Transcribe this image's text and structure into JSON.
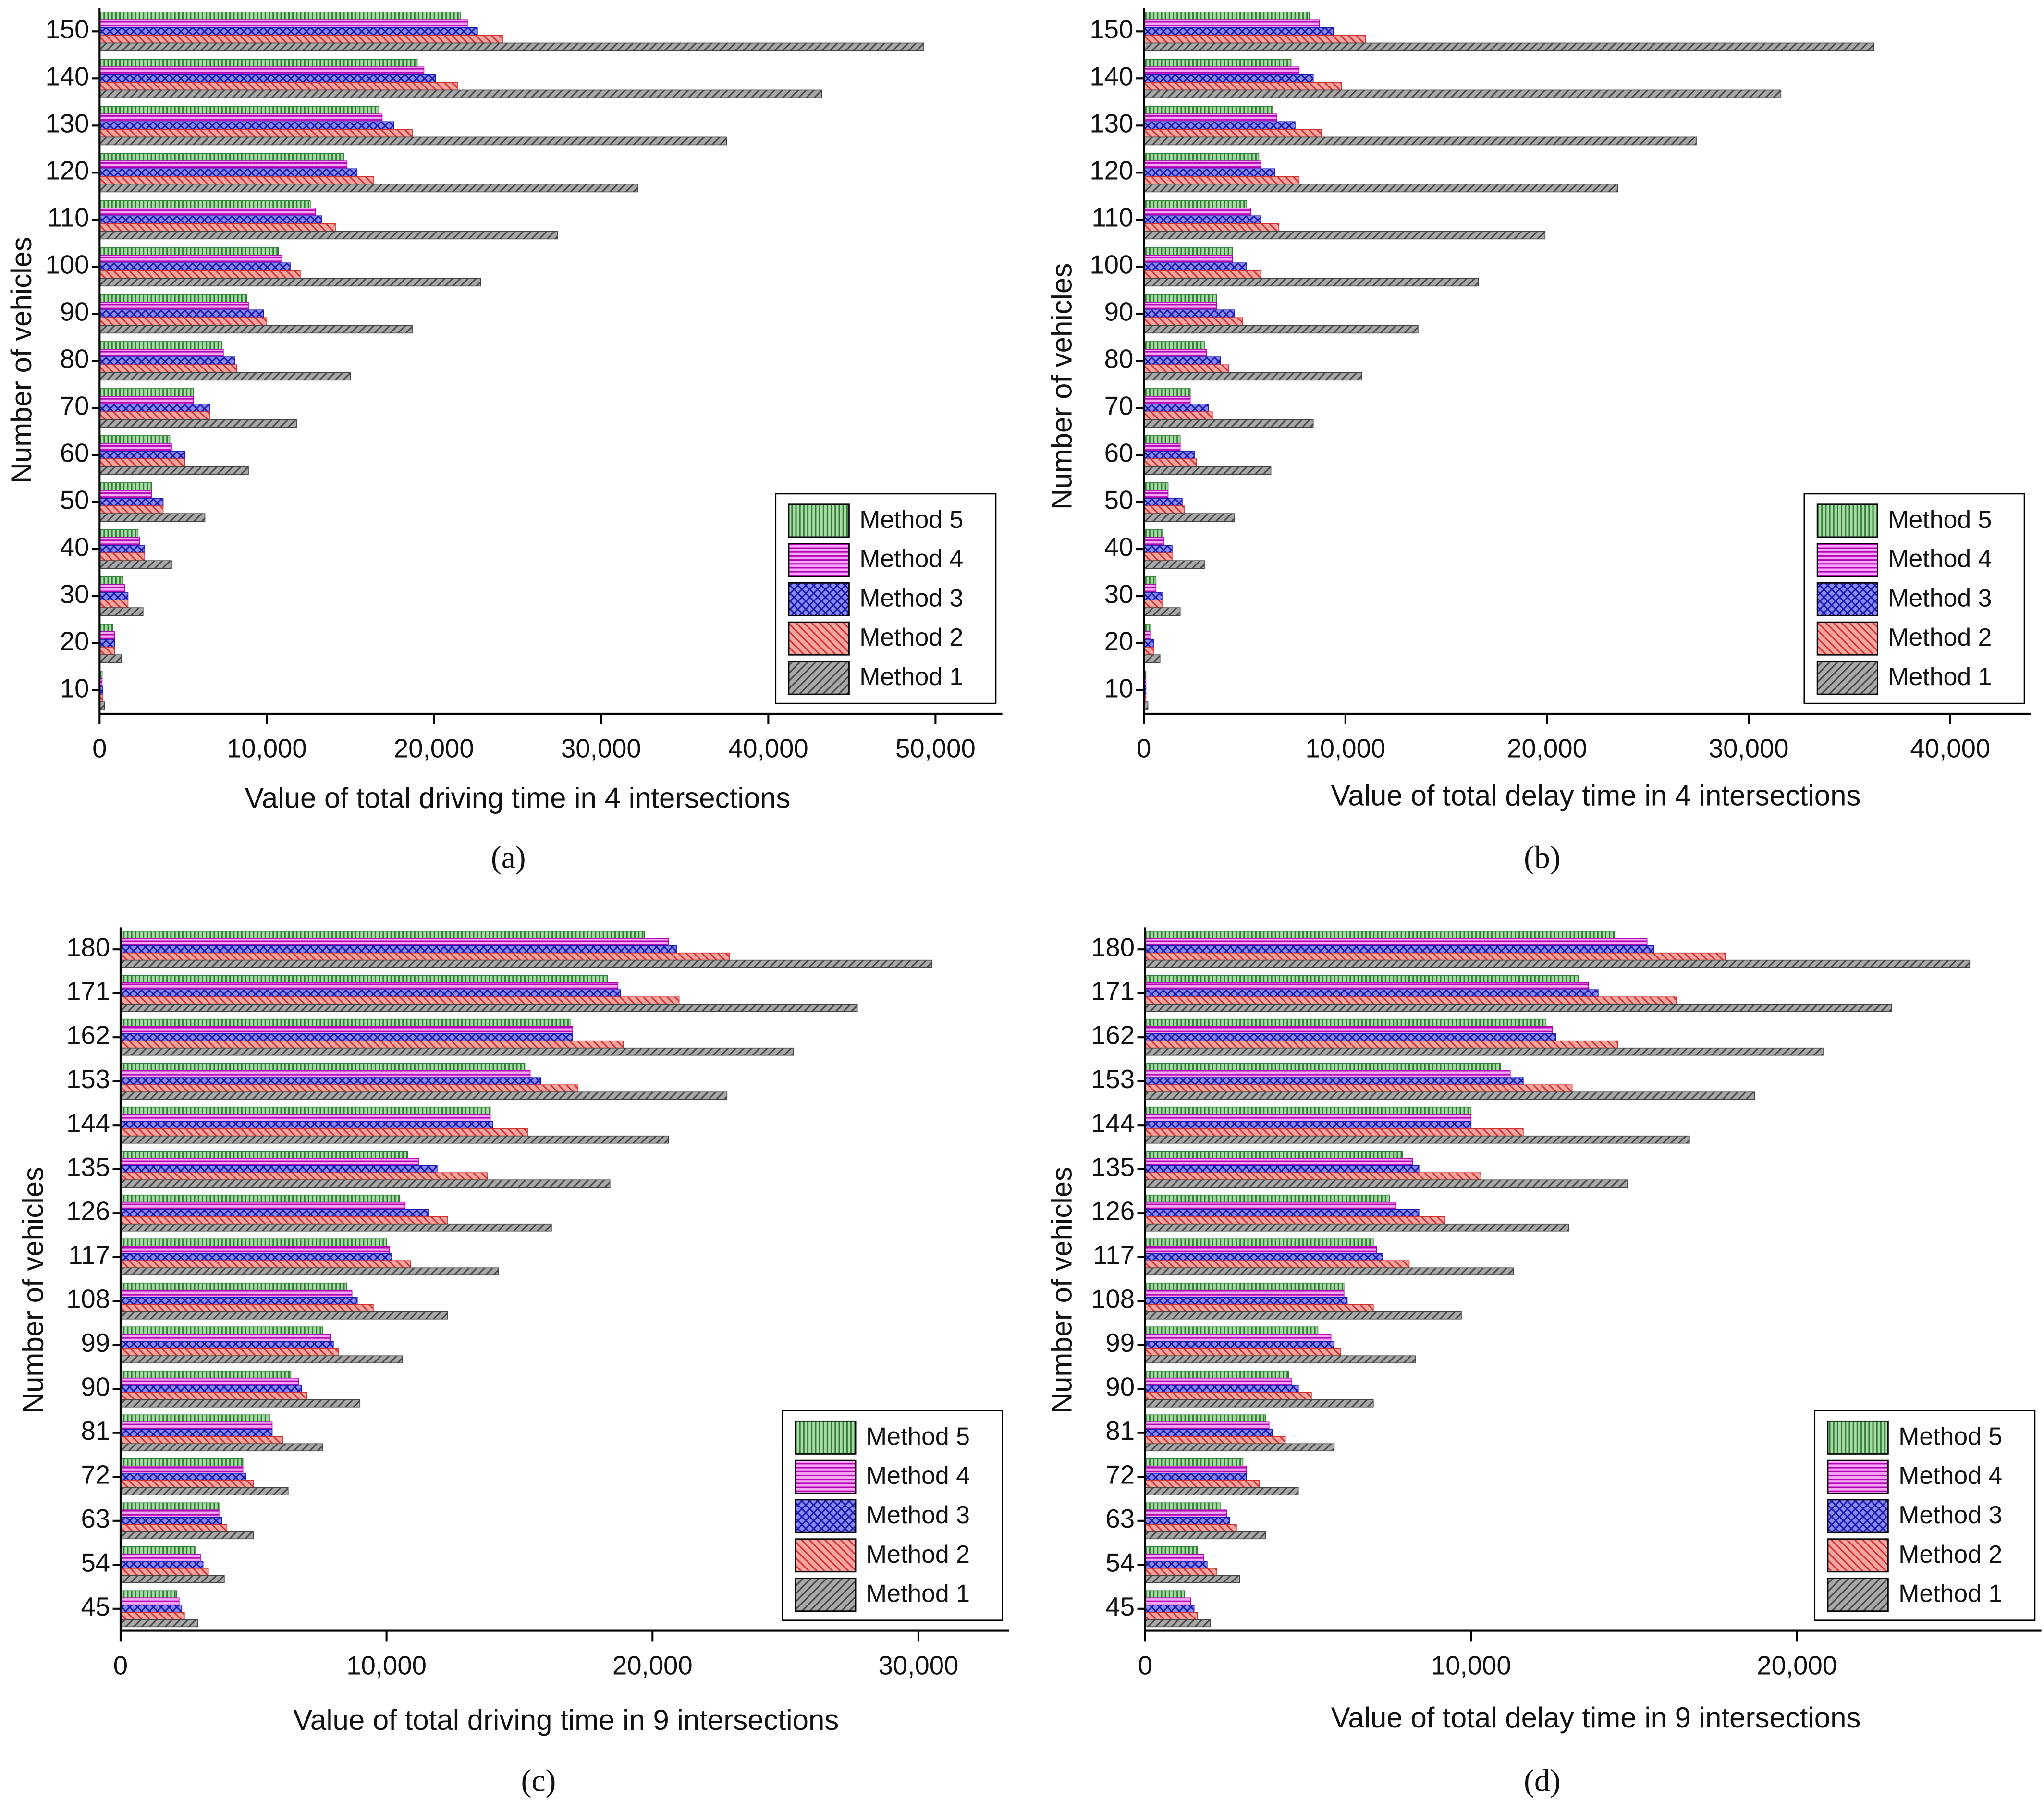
{
  "chart_data": [
    {
      "type": "bar",
      "orientation": "horizontal",
      "caption": "(a)",
      "x_label": "Value of total driving time in 4 intersections",
      "y_label": "Number of vehicles",
      "categories": [
        "10",
        "20",
        "30",
        "40",
        "50",
        "60",
        "70",
        "80",
        "90",
        "100",
        "110",
        "120",
        "130",
        "140",
        "150"
      ],
      "xlim": [
        0,
        54000
      ],
      "xticks": [
        0,
        {
          "value": 10000,
          "label": "10,000"
        },
        {
          "value": 20000,
          "label": "20,000"
        },
        {
          "value": 30000,
          "label": "30,000"
        },
        {
          "value": 40000,
          "label": "40,000"
        },
        {
          "value": 50000,
          "label": "50,000"
        }
      ],
      "legend": "lower right",
      "series": [
        {
          "name": "Method 5",
          "color": "#a9dba9",
          "hatch_color": "#2e7d32",
          "hatch": "vertical",
          "values": [
            150,
            800,
            1400,
            2300,
            3100,
            4200,
            5600,
            7300,
            8800,
            10700,
            12600,
            14600,
            16700,
            19000,
            21600
          ]
        },
        {
          "name": "Method 4",
          "color": "#f9a8f9",
          "hatch_color": "#b000b0",
          "hatch": "horizontal",
          "values": [
            150,
            900,
            1500,
            2400,
            3100,
            4300,
            5600,
            7400,
            8900,
            10900,
            12900,
            14800,
            16900,
            19400,
            22000
          ]
        },
        {
          "name": "Method 3",
          "color": "#8a8af0",
          "hatch_color": "#1a1ab0",
          "hatch": "cross",
          "values": [
            200,
            900,
            1700,
            2700,
            3800,
            5100,
            6600,
            8100,
            9800,
            11400,
            13300,
            15400,
            17600,
            20100,
            22600
          ]
        },
        {
          "name": "Method 2",
          "color": "#f5a5a0",
          "hatch_color": "#d03030",
          "hatch": "back-diagonal",
          "values": [
            200,
            900,
            1700,
            2700,
            3800,
            5100,
            6600,
            8200,
            10000,
            12000,
            14100,
            16400,
            18700,
            21400,
            24100
          ]
        },
        {
          "name": "Method 1",
          "color": "#a8a8a8",
          "hatch_color": "#444444",
          "hatch": "diagonal",
          "values": [
            300,
            1300,
            2600,
            4300,
            6300,
            8900,
            11800,
            15000,
            18700,
            22800,
            27400,
            32200,
            37500,
            43200,
            49300
          ]
        }
      ]
    },
    {
      "type": "bar",
      "orientation": "horizontal",
      "caption": "(b)",
      "x_label": "Value of total delay time in 4 intersections",
      "y_label": "Number of vehicles",
      "categories": [
        "10",
        "20",
        "30",
        "40",
        "50",
        "60",
        "70",
        "80",
        "90",
        "100",
        "110",
        "120",
        "130",
        "140",
        "150"
      ],
      "xlim": [
        0,
        44000
      ],
      "xticks": [
        0,
        {
          "value": 10000,
          "label": "10,000"
        },
        {
          "value": 20000,
          "label": "20,000"
        },
        {
          "value": 30000,
          "label": "30,000"
        },
        {
          "value": 40000,
          "label": "40,000"
        }
      ],
      "legend": "lower right",
      "series": [
        {
          "name": "Method 5",
          "color": "#a9dba9",
          "hatch_color": "#2e7d32",
          "hatch": "vertical",
          "values": [
            100,
            300,
            600,
            900,
            1200,
            1800,
            2300,
            3000,
            3600,
            4400,
            5100,
            5700,
            6400,
            7300,
            8200
          ]
        },
        {
          "name": "Method 4",
          "color": "#f9a8f9",
          "hatch_color": "#b000b0",
          "hatch": "horizontal",
          "values": [
            100,
            300,
            600,
            1000,
            1200,
            1800,
            2300,
            3100,
            3600,
            4400,
            5300,
            5800,
            6600,
            7700,
            8700
          ]
        },
        {
          "name": "Method 3",
          "color": "#8a8af0",
          "hatch_color": "#1a1ab0",
          "hatch": "cross",
          "values": [
            100,
            500,
            900,
            1400,
            1900,
            2500,
            3200,
            3800,
            4500,
            5100,
            5800,
            6500,
            7500,
            8400,
            9400
          ]
        },
        {
          "name": "Method 2",
          "color": "#f5a5a0",
          "hatch_color": "#d03030",
          "hatch": "back-diagonal",
          "values": [
            100,
            500,
            900,
            1400,
            2000,
            2600,
            3400,
            4200,
            4900,
            5800,
            6700,
            7700,
            8800,
            9800,
            11000
          ]
        },
        {
          "name": "Method 1",
          "color": "#a8a8a8",
          "hatch_color": "#444444",
          "hatch": "diagonal",
          "values": [
            200,
            800,
            1800,
            3000,
            4500,
            6300,
            8400,
            10800,
            13600,
            16600,
            19900,
            23500,
            27400,
            31600,
            36200
          ]
        }
      ]
    },
    {
      "type": "bar",
      "orientation": "horizontal",
      "caption": "(c)",
      "x_label": "Value of total driving time in 9 intersections",
      "y_label": "Number of vehicles",
      "categories": [
        "45",
        "54",
        "63",
        "72",
        "81",
        "90",
        "99",
        "108",
        "117",
        "126",
        "135",
        "144",
        "153",
        "162",
        "171",
        "180"
      ],
      "xlim": [
        0,
        33400
      ],
      "xticks": [
        0,
        {
          "value": 10000,
          "label": "10,000"
        },
        {
          "value": 20000,
          "label": "20,000"
        },
        {
          "value": 30000,
          "label": "30,000"
        }
      ],
      "legend": "lower right",
      "series": [
        {
          "name": "Method 5",
          "color": "#a9dba9",
          "hatch_color": "#2e7d32",
          "hatch": "vertical",
          "values": [
            2100,
            2800,
            3700,
            4600,
            5600,
            6400,
            7600,
            8500,
            10000,
            10500,
            10800,
            13900,
            15200,
            16900,
            18300,
            19700
          ]
        },
        {
          "name": "Method 4",
          "color": "#f9a8f9",
          "hatch_color": "#b000b0",
          "hatch": "horizontal",
          "values": [
            2200,
            3000,
            3700,
            4600,
            5700,
            6700,
            7900,
            8700,
            10100,
            10700,
            11200,
            13900,
            15400,
            17000,
            18700,
            20600
          ]
        },
        {
          "name": "Method 3",
          "color": "#8a8af0",
          "hatch_color": "#1a1ab0",
          "hatch": "cross",
          "values": [
            2300,
            3100,
            3800,
            4700,
            5700,
            6800,
            8000,
            8900,
            10200,
            11600,
            11900,
            14000,
            15800,
            17000,
            18800,
            20900
          ]
        },
        {
          "name": "Method 2",
          "color": "#f5a5a0",
          "hatch_color": "#d03030",
          "hatch": "back-diagonal",
          "values": [
            2400,
            3300,
            4000,
            5000,
            6100,
            7000,
            8200,
            9500,
            10900,
            12300,
            13800,
            15300,
            17200,
            18900,
            21000,
            22900
          ]
        },
        {
          "name": "Method 1",
          "color": "#a8a8a8",
          "hatch_color": "#444444",
          "hatch": "diagonal",
          "values": [
            2900,
            3900,
            5000,
            6300,
            7600,
            9000,
            10600,
            12300,
            14200,
            16200,
            18400,
            20600,
            22800,
            25300,
            27700,
            30500
          ]
        }
      ]
    },
    {
      "type": "bar",
      "orientation": "horizontal",
      "caption": "(d)",
      "x_label": "Value of total delay time in 9 intersections",
      "y_label": "Number of vehicles",
      "categories": [
        "45",
        "54",
        "63",
        "72",
        "81",
        "90",
        "99",
        "108",
        "117",
        "126",
        "135",
        "144",
        "153",
        "162",
        "171",
        "180"
      ],
      "xlim": [
        0,
        27500
      ],
      "xticks": [
        0,
        {
          "value": 10000,
          "label": "10,000"
        },
        {
          "value": 20000,
          "label": "20,000"
        }
      ],
      "legend": "lower right",
      "series": [
        {
          "name": "Method 5",
          "color": "#a9dba9",
          "hatch_color": "#2e7d32",
          "hatch": "vertical",
          "values": [
            1200,
            1600,
            2300,
            3000,
            3700,
            4400,
            5300,
            6100,
            7000,
            7500,
            7900,
            10000,
            10900,
            12300,
            13300,
            14400
          ]
        },
        {
          "name": "Method 4",
          "color": "#f9a8f9",
          "hatch_color": "#b000b0",
          "hatch": "horizontal",
          "values": [
            1400,
            1800,
            2500,
            3100,
            3800,
            4500,
            5700,
            6100,
            7100,
            7700,
            8200,
            10000,
            11200,
            12500,
            13600,
            15400
          ]
        },
        {
          "name": "Method 3",
          "color": "#8a8af0",
          "hatch_color": "#1a1ab0",
          "hatch": "cross",
          "values": [
            1500,
            1900,
            2600,
            3100,
            3900,
            4700,
            5800,
            6200,
            7300,
            8400,
            8400,
            10000,
            11600,
            12600,
            13900,
            15600
          ]
        },
        {
          "name": "Method 2",
          "color": "#f5a5a0",
          "hatch_color": "#d03030",
          "hatch": "back-diagonal",
          "values": [
            1600,
            2200,
            2800,
            3500,
            4300,
            5100,
            6000,
            7000,
            8100,
            9200,
            10300,
            11600,
            13100,
            14500,
            16300,
            17800
          ]
        },
        {
          "name": "Method 1",
          "color": "#a8a8a8",
          "hatch_color": "#444444",
          "hatch": "diagonal",
          "values": [
            2000,
            2900,
            3700,
            4700,
            5800,
            7000,
            8300,
            9700,
            11300,
            13000,
            14800,
            16700,
            18700,
            20800,
            22900,
            25300
          ]
        }
      ]
    }
  ]
}
